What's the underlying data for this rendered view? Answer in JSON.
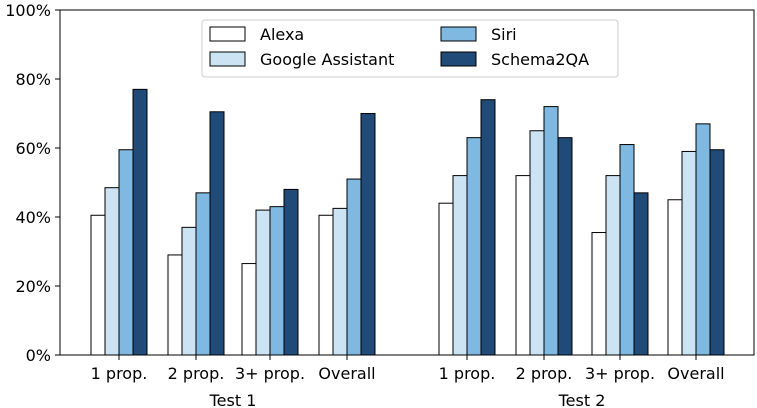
{
  "chart_data": {
    "type": "bar",
    "title": "",
    "xlabel": "",
    "ylabel": "",
    "ylim": [
      0,
      100
    ],
    "yticks": [
      0,
      20,
      40,
      60,
      80,
      100
    ],
    "ytick_labels": [
      "0%",
      "20%",
      "40%",
      "60%",
      "80%",
      "100%"
    ],
    "grid": false,
    "legend_position": "top-center",
    "categories": [
      "1 prop.",
      "2 prop.",
      "3+ prop.",
      "Overall",
      "1 prop.",
      "2 prop.",
      "3+ prop.",
      "Overall"
    ],
    "groups": [
      "Test 1",
      "Test 2"
    ],
    "series": [
      {
        "name": "Alexa",
        "color": "#ffffff",
        "values": [
          40.5,
          29,
          26.5,
          40.5,
          44,
          52,
          35.5,
          45
        ]
      },
      {
        "name": "Google Assistant",
        "color": "#cce3f4",
        "values": [
          48.5,
          37,
          42,
          42.5,
          52,
          65,
          52,
          59
        ]
      },
      {
        "name": "Siri",
        "color": "#7fb8e0",
        "values": [
          59.5,
          47,
          43,
          51,
          63,
          72,
          61,
          67
        ]
      },
      {
        "name": "Schema2QA",
        "color": "#204a78",
        "values": [
          77,
          70.5,
          48,
          70,
          74,
          63,
          47,
          59.5
        ]
      }
    ]
  }
}
